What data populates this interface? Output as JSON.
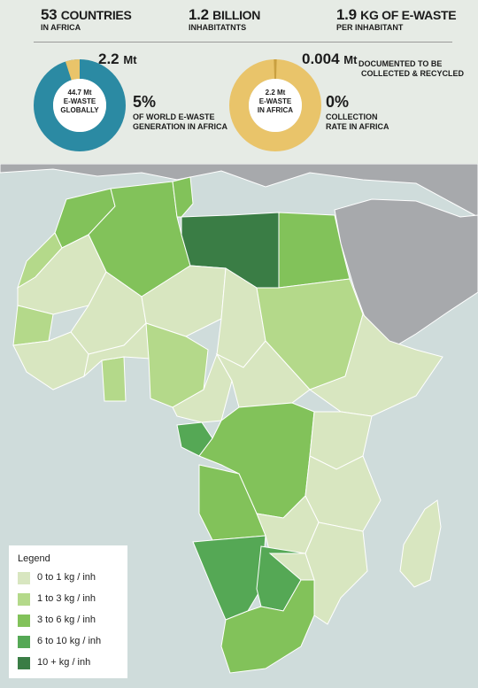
{
  "stats": {
    "countries": {
      "value": "53",
      "unit": "COUNTRIES",
      "label": "IN AFRICA"
    },
    "inhabitants": {
      "value": "1.2",
      "unit": "BILLION",
      "label": "INHABITATNTS"
    },
    "per_inhabitant": {
      "value": "1.9",
      "unit": "KG OF E-WASTE",
      "label": "PER INHABITANT"
    }
  },
  "donut_global": {
    "center_line1": "44.7 Mt",
    "center_line2": "E-WASTE",
    "center_line3": "GLOBALLY",
    "slice_value": "2.2",
    "slice_unit": "Mt",
    "percent": "5%",
    "percent_label_line1": "OF WORLD E-WASTE",
    "percent_label_line2": "GENERATION IN AFRICA",
    "fraction": 0.05,
    "ring_color": "#2b8aa3",
    "slice_color": "#e9c46a"
  },
  "donut_africa": {
    "center_line1": "2.2 Mt",
    "center_line2": "E-WASTE",
    "center_line3": "IN AFRICA",
    "slice_value": "0.004",
    "slice_unit": "Mt",
    "slice_label_line1": "DOCUMENTED TO BE",
    "slice_label_line2": "COLLECTED & RECYCLED",
    "percent": "0%",
    "percent_label_line1": "COLLECTION",
    "percent_label_line2": "RATE IN AFRICA",
    "fraction": 0.002,
    "ring_color": "#e9c46a",
    "slice_color": "#c9a040"
  },
  "legend": {
    "title": "Legend",
    "items": [
      {
        "label": "0 to 1 kg / inh",
        "color": "#d8e6c0"
      },
      {
        "label": "1 to 3 kg / inh",
        "color": "#b4d98a"
      },
      {
        "label": "3 to 6 kg / inh",
        "color": "#82c25a"
      },
      {
        "label": "6 to 10 kg / inh",
        "color": "#55a855"
      },
      {
        "label": "10 + kg / inh",
        "color": "#3a7d45"
      }
    ]
  },
  "map_colors": {
    "sea": "#cfdcdb",
    "other_land": "#a7a9ac",
    "border": "#ffffff"
  }
}
